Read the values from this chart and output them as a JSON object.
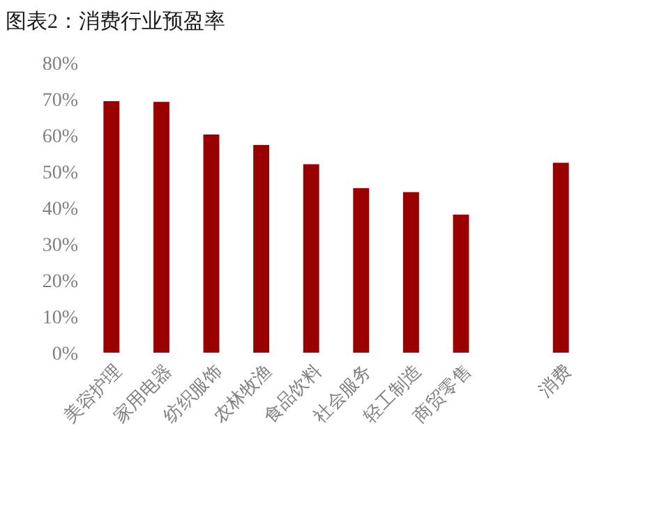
{
  "chart_data": {
    "type": "bar",
    "title": "图表2：消费行业预盈率",
    "categories": [
      "美容护理",
      "家用电器",
      "纺织服饰",
      "农林牧渔",
      "食品饮料",
      "社会服务",
      "轻工制造",
      "商贸零售",
      null,
      "消费"
    ],
    "values": [
      69.4,
      69.2,
      60.2,
      57.3,
      52.0,
      45.4,
      44.3,
      38.1,
      null,
      52.4
    ],
    "color": "#990000",
    "ylim": [
      0,
      80
    ],
    "yticks": [
      {
        "value": 0,
        "label": "0%"
      },
      {
        "value": 10,
        "label": "10%"
      },
      {
        "value": 20,
        "label": "20%"
      },
      {
        "value": 30,
        "label": "30%"
      },
      {
        "value": 40,
        "label": "40%"
      },
      {
        "value": 50,
        "label": "50%"
      },
      {
        "value": 60,
        "label": "60%"
      },
      {
        "value": 70,
        "label": "70%"
      },
      {
        "value": 80,
        "label": "80%"
      }
    ]
  }
}
